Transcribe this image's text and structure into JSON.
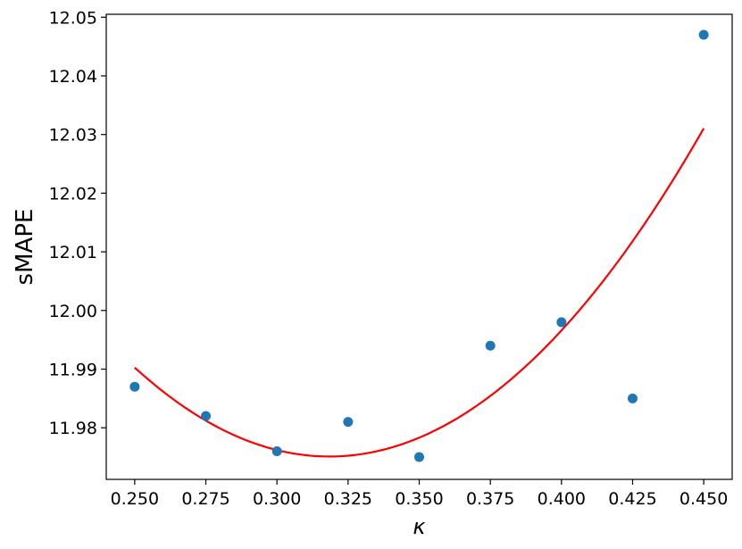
{
  "chart_data": {
    "type": "scatter",
    "title": "",
    "xlabel": "κ",
    "ylabel": "sMAPE",
    "xlim": [
      0.24,
      0.46
    ],
    "ylim": [
      11.9712,
      12.0505
    ],
    "x_ticks": [
      0.25,
      0.275,
      0.3,
      0.325,
      0.35,
      0.375,
      0.4,
      0.425,
      0.45
    ],
    "x_tick_labels": [
      "0.250",
      "0.275",
      "0.300",
      "0.325",
      "0.350",
      "0.375",
      "0.400",
      "0.425",
      "0.450"
    ],
    "y_ticks": [
      11.98,
      11.99,
      12.0,
      12.01,
      12.02,
      12.03,
      12.04,
      12.05
    ],
    "y_tick_labels": [
      "11.98",
      "11.99",
      "12.00",
      "12.01",
      "12.02",
      "12.03",
      "12.04",
      "12.05"
    ],
    "grid": false,
    "series": [
      {
        "type": "scatter",
        "color": "#1f77b4",
        "points": [
          {
            "x": 0.25,
            "y": 11.987
          },
          {
            "x": 0.275,
            "y": 11.982
          },
          {
            "x": 0.3,
            "y": 11.976
          },
          {
            "x": 0.325,
            "y": 11.981
          },
          {
            "x": 0.35,
            "y": 11.975
          },
          {
            "x": 0.375,
            "y": 11.994
          },
          {
            "x": 0.4,
            "y": 11.998
          },
          {
            "x": 0.425,
            "y": 11.985
          },
          {
            "x": 0.45,
            "y": 12.047
          }
        ]
      },
      {
        "type": "line",
        "color": "#ff0000",
        "points": [
          {
            "x": 0.25,
            "y": 11.99
          },
          {
            "x": 0.275,
            "y": 11.9815
          },
          {
            "x": 0.3,
            "y": 11.9765
          },
          {
            "x": 0.3185,
            "y": 11.975
          },
          {
            "x": 0.325,
            "y": 11.9752
          },
          {
            "x": 0.35,
            "y": 11.978
          },
          {
            "x": 0.375,
            "y": 11.9855
          },
          {
            "x": 0.4,
            "y": 11.9965
          },
          {
            "x": 0.425,
            "y": 12.012
          },
          {
            "x": 0.45,
            "y": 12.031
          }
        ]
      }
    ]
  }
}
